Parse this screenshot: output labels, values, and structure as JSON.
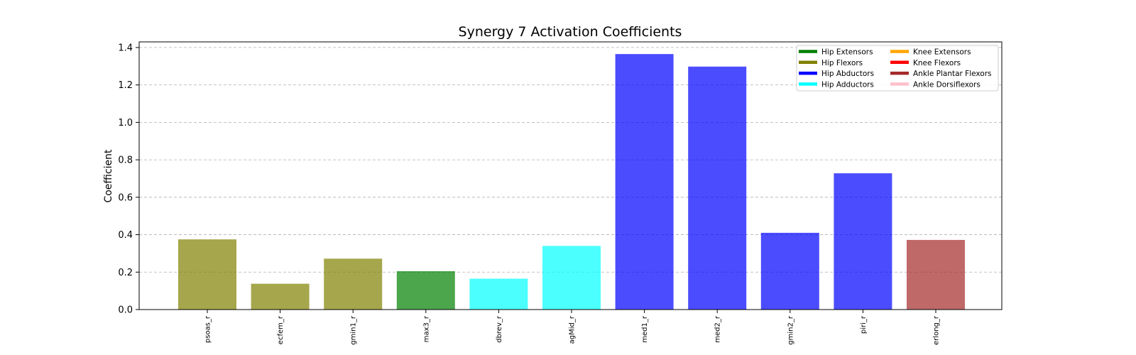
{
  "chart_data": {
    "type": "bar",
    "title": "Synergy 7 Activation Coefficients",
    "xlabel": "",
    "ylabel": "Coefficient",
    "ylim": [
      0,
      1.43
    ],
    "yticks": [
      "0.0",
      "0.2",
      "0.4",
      "0.6",
      "0.8",
      "1.0",
      "1.2",
      "1.4"
    ],
    "grid": "y, dashed",
    "legend_position": "top-right",
    "categories": [
      "psoas_r",
      "ecfem_r",
      "gmin1_r",
      "max3_r",
      "dbrev_r",
      "agMid_r",
      "med1_r",
      "med2_r",
      "gmin2_r",
      "piri_r",
      "erlong_r"
    ],
    "values": [
      0.375,
      0.138,
      0.272,
      0.205,
      0.165,
      0.34,
      1.365,
      1.298,
      0.41,
      0.728,
      0.372
    ],
    "bar_groups": [
      "Hip Flexors",
      "Hip Flexors",
      "Hip Flexors",
      "Hip Extensors",
      "Hip Adductors",
      "Hip Adductors",
      "Hip Abductors",
      "Hip Abductors",
      "Hip Abductors",
      "Hip Abductors",
      "Ankle Plantar Flexors"
    ],
    "legend": [
      {
        "label": "Hip Extensors",
        "color": "#008000"
      },
      {
        "label": "Hip Flexors",
        "color": "#808000"
      },
      {
        "label": "Hip Abductors",
        "color": "#0000ff"
      },
      {
        "label": "Hip Adductors",
        "color": "#00ffff"
      },
      {
        "label": "Knee Extensors",
        "color": "#ffa500"
      },
      {
        "label": "Knee Flexors",
        "color": "#ff0000"
      },
      {
        "label": "Ankle Plantar Flexors",
        "color": "#a52a2a"
      },
      {
        "label": "Ankle Dorsiflexors",
        "color": "#ffc0cb"
      }
    ],
    "bar_opacity": 0.7
  }
}
